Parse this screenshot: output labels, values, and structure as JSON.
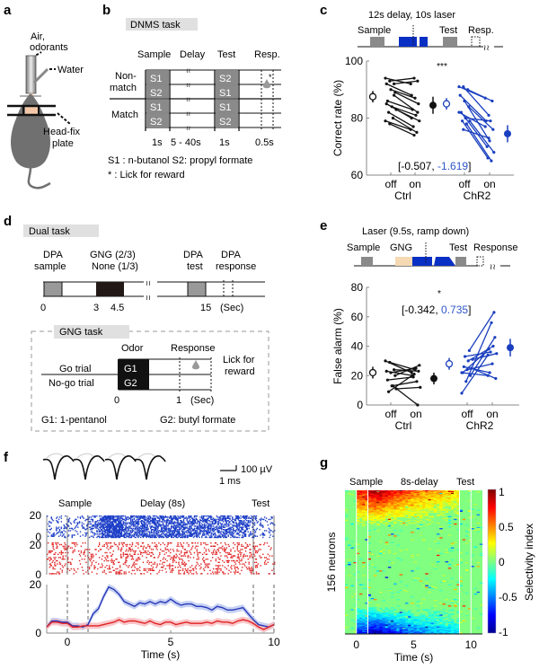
{
  "panels": {
    "a": {
      "letter": "a",
      "labels": {
        "air": "Air,",
        "odorants": "odorants",
        "water": "Water",
        "headfix1": "Head-fix",
        "headfix2": "plate"
      }
    },
    "b": {
      "letter": "b",
      "title": "DNMS task",
      "headers": [
        "Sample",
        "Delay",
        "Test",
        "Resp."
      ],
      "groups": [
        {
          "label1": "Non-",
          "label2": "match"
        },
        {
          "label1": "Match",
          "label2": ""
        }
      ],
      "rows": [
        {
          "sample": "S1",
          "test": "S2"
        },
        {
          "sample": "S2",
          "test": "S1"
        },
        {
          "sample": "S1",
          "test": "S1"
        },
        {
          "sample": "S2",
          "test": "S2"
        }
      ],
      "durations": [
        "1s",
        "5 - 40s",
        "1s",
        "0.5s"
      ],
      "legend1": "S1 : n-butanol  S2: propyl formate",
      "legend2": "* :  Lick for reward",
      "reward_mark": "*"
    },
    "c": {
      "letter": "c",
      "protocol_title": "12s delay, 10s laser",
      "protocol_labels": {
        "sample": "Sample",
        "test": "Test",
        "resp": "Resp."
      }
    },
    "d": {
      "letter": "d",
      "title": "Dual task",
      "events": [
        {
          "l1": "DPA",
          "l2": "sample"
        },
        {
          "l1": "GNG (2/3)",
          "l2": "None (1/3)"
        },
        {
          "l1": "DPA",
          "l2": "test"
        },
        {
          "l1": "DPA",
          "l2": "response"
        }
      ],
      "ticks": [
        "0",
        "3",
        "4.5",
        "15",
        "(Sec)"
      ],
      "gng": {
        "title": "GNG task",
        "odor": "Odor",
        "response": "Response",
        "go": "Go trial",
        "nogo": "No-go trial",
        "g1": "G1",
        "g2": "G2",
        "lick1": "Lick for",
        "lick2": "reward",
        "ticks": [
          "0",
          "1",
          "(Sec)"
        ],
        "legend_g1": "G1: 1-pentanol",
        "legend_g2": "G2: butyl formate"
      }
    },
    "e": {
      "letter": "e",
      "protocol_title": "Laser (9.5s, ramp down)",
      "protocol_labels": {
        "sample": "Sample",
        "gng": "GNG",
        "test": "Test",
        "resp": "Response"
      }
    },
    "f": {
      "letter": "f",
      "scale_v": "100 µV",
      "scale_t": "1 ms",
      "epochs": [
        "Sample",
        "Delay (8s)",
        "Test"
      ]
    },
    "g": {
      "letter": "g",
      "epochs": [
        "Sample",
        "8s-delay",
        "Test"
      ]
    }
  },
  "colors": {
    "ctrl": "#111111",
    "chr2": "#1a3fbf",
    "chr2_text": "#2f55c8",
    "gray_box": "#8a8a8a",
    "laser": "#0a2fc4",
    "gng_box": "#f5d9b3",
    "title_bg": "#e0e0e0",
    "red": "#e02020",
    "blue_raster": "#1d3fc7"
  },
  "chart_data": [
    {
      "id": "c",
      "type": "scatter",
      "title": "",
      "ylabel": "Correct rate (%)",
      "ylim": [
        60,
        100
      ],
      "yticks": [
        60,
        80,
        100
      ],
      "xtick_labels": [
        "off",
        "on",
        "off",
        "on"
      ],
      "group_labels": [
        "Ctrl",
        "ChR2"
      ],
      "annotation": "***",
      "coef_prefix": "[-0.507, ",
      "coef_blue": "-1.619",
      "coef_suffix": "]",
      "series": [
        {
          "name": "Ctrl",
          "pairs": [
            [
              94,
              92
            ],
            [
              93,
              94
            ],
            [
              92,
              93
            ],
            [
              92,
              88
            ],
            [
              90,
              87
            ],
            [
              89,
              85
            ],
            [
              86,
              83
            ],
            [
              84,
              81
            ],
            [
              83,
              79
            ],
            [
              82,
              77
            ],
            [
              80,
              75
            ],
            [
              79,
              76
            ],
            [
              78,
              74
            ],
            [
              88,
              82
            ],
            [
              85,
              80
            ]
          ],
          "mean_off": 87.5,
          "sem_off": 2,
          "mean_on": 84.5,
          "sem_on": 3
        },
        {
          "name": "ChR2",
          "pairs": [
            [
              91,
              87
            ],
            [
              91,
              81
            ],
            [
              90,
              86
            ],
            [
              88,
              79
            ],
            [
              86,
              72
            ],
            [
              84,
              76
            ],
            [
              82,
              70
            ],
            [
              80,
              79
            ],
            [
              79,
              68
            ],
            [
              79,
              66
            ],
            [
              78,
              65
            ],
            [
              82,
              77
            ],
            [
              76,
              73
            ]
          ],
          "mean_off": 85,
          "sem_off": 2,
          "mean_on": 74.5,
          "sem_on": 3
        }
      ]
    },
    {
      "id": "e",
      "type": "scatter",
      "ylabel": "False alarm (%)",
      "ylim": [
        0,
        80
      ],
      "yticks": [
        0,
        20,
        40,
        60,
        80
      ],
      "xtick_labels": [
        "off",
        "on",
        "off",
        "on"
      ],
      "group_labels": [
        "Ctrl",
        "ChR2"
      ],
      "annotation": "*",
      "coef_prefix": "[-0.342, ",
      "coef_blue": "0.735",
      "coef_suffix": "]",
      "series": [
        {
          "name": "Ctrl",
          "pairs": [
            [
              30,
              22
            ],
            [
              29,
              24
            ],
            [
              24,
              23
            ],
            [
              23,
              20
            ],
            [
              22,
              25
            ],
            [
              20,
              27
            ],
            [
              17,
              19
            ],
            [
              13,
              16
            ],
            [
              11,
              12
            ],
            [
              9,
              21
            ],
            [
              13,
              0
            ]
          ],
          "mean_off": 22,
          "sem_off": 4,
          "mean_on": 18,
          "sem_on": 4
        },
        {
          "name": "ChR2",
          "pairs": [
            [
              8,
              34
            ],
            [
              16,
              56
            ],
            [
              20,
              46
            ],
            [
              22,
              38
            ],
            [
              24,
              28
            ],
            [
              25,
              18
            ],
            [
              26,
              22
            ],
            [
              30,
              40
            ],
            [
              31,
              35
            ],
            [
              33,
              36
            ],
            [
              37,
              63
            ],
            [
              22,
              20
            ]
          ],
          "mean_off": 28,
          "sem_off": 4,
          "mean_on": 39,
          "sem_on": 6
        }
      ]
    },
    {
      "id": "f",
      "type": "line",
      "xlabel": "Time (s)",
      "xlim": [
        -1,
        10
      ],
      "xticks": [
        0,
        5,
        10
      ],
      "raster_yticks": [
        0,
        20,
        0,
        20
      ],
      "ylim": [
        0,
        20
      ],
      "yticks": [
        0,
        20
      ],
      "event_lines": [
        0,
        1,
        9,
        10
      ],
      "x": [
        -1,
        -0.75,
        -0.5,
        -0.25,
        0,
        0.25,
        0.5,
        0.75,
        1,
        1.25,
        1.5,
        1.75,
        2,
        2.25,
        2.5,
        2.75,
        3,
        3.25,
        3.5,
        3.75,
        4,
        4.25,
        4.5,
        4.75,
        5,
        5.25,
        5.5,
        5.75,
        6,
        6.25,
        6.5,
        6.75,
        7,
        7.25,
        7.5,
        7.75,
        8,
        8.25,
        8.5,
        8.75,
        9,
        9.25,
        9.5,
        9.75,
        10
      ],
      "series": [
        {
          "name": "blue",
          "values": [
            2.5,
            5,
            5,
            4.5,
            4.5,
            3,
            3,
            2.5,
            3.5,
            8,
            10,
            15,
            19,
            18,
            16,
            13,
            12,
            11,
            12.5,
            12,
            13,
            12,
            13,
            12.5,
            14,
            12.5,
            11.5,
            12,
            12,
            11,
            11,
            10.5,
            9.5,
            11,
            10.5,
            9.5,
            9.5,
            10,
            10.5,
            8,
            5.5,
            3.5,
            3,
            2.5,
            3.5
          ]
        },
        {
          "name": "red",
          "values": [
            2.5,
            4.5,
            4.5,
            4,
            4,
            2.5,
            2.5,
            3,
            3,
            3,
            3,
            3.5,
            4,
            4.5,
            5.5,
            4.5,
            5,
            5,
            4.5,
            4,
            5,
            4,
            3.5,
            4.5,
            4.5,
            3.5,
            4,
            4.5,
            4,
            4,
            4,
            4.5,
            4,
            5,
            4.5,
            4.5,
            4,
            5,
            5.5,
            5,
            4,
            2.5,
            1.5,
            2.5,
            3.5
          ]
        }
      ]
    },
    {
      "id": "g",
      "type": "heatmap",
      "xlabel": "Time (s)",
      "ylabel": "156 neurons",
      "xlim": [
        -1,
        11
      ],
      "xticks": [
        0,
        5,
        10
      ],
      "n_rows": 156,
      "event_lines": [
        0,
        1,
        9,
        10
      ],
      "colorbar": {
        "label": "Selectivity index",
        "range": [
          -1,
          1
        ],
        "ticks": [
          "1",
          "0.5",
          "0",
          "-0.5",
          "-1"
        ]
      }
    }
  ]
}
